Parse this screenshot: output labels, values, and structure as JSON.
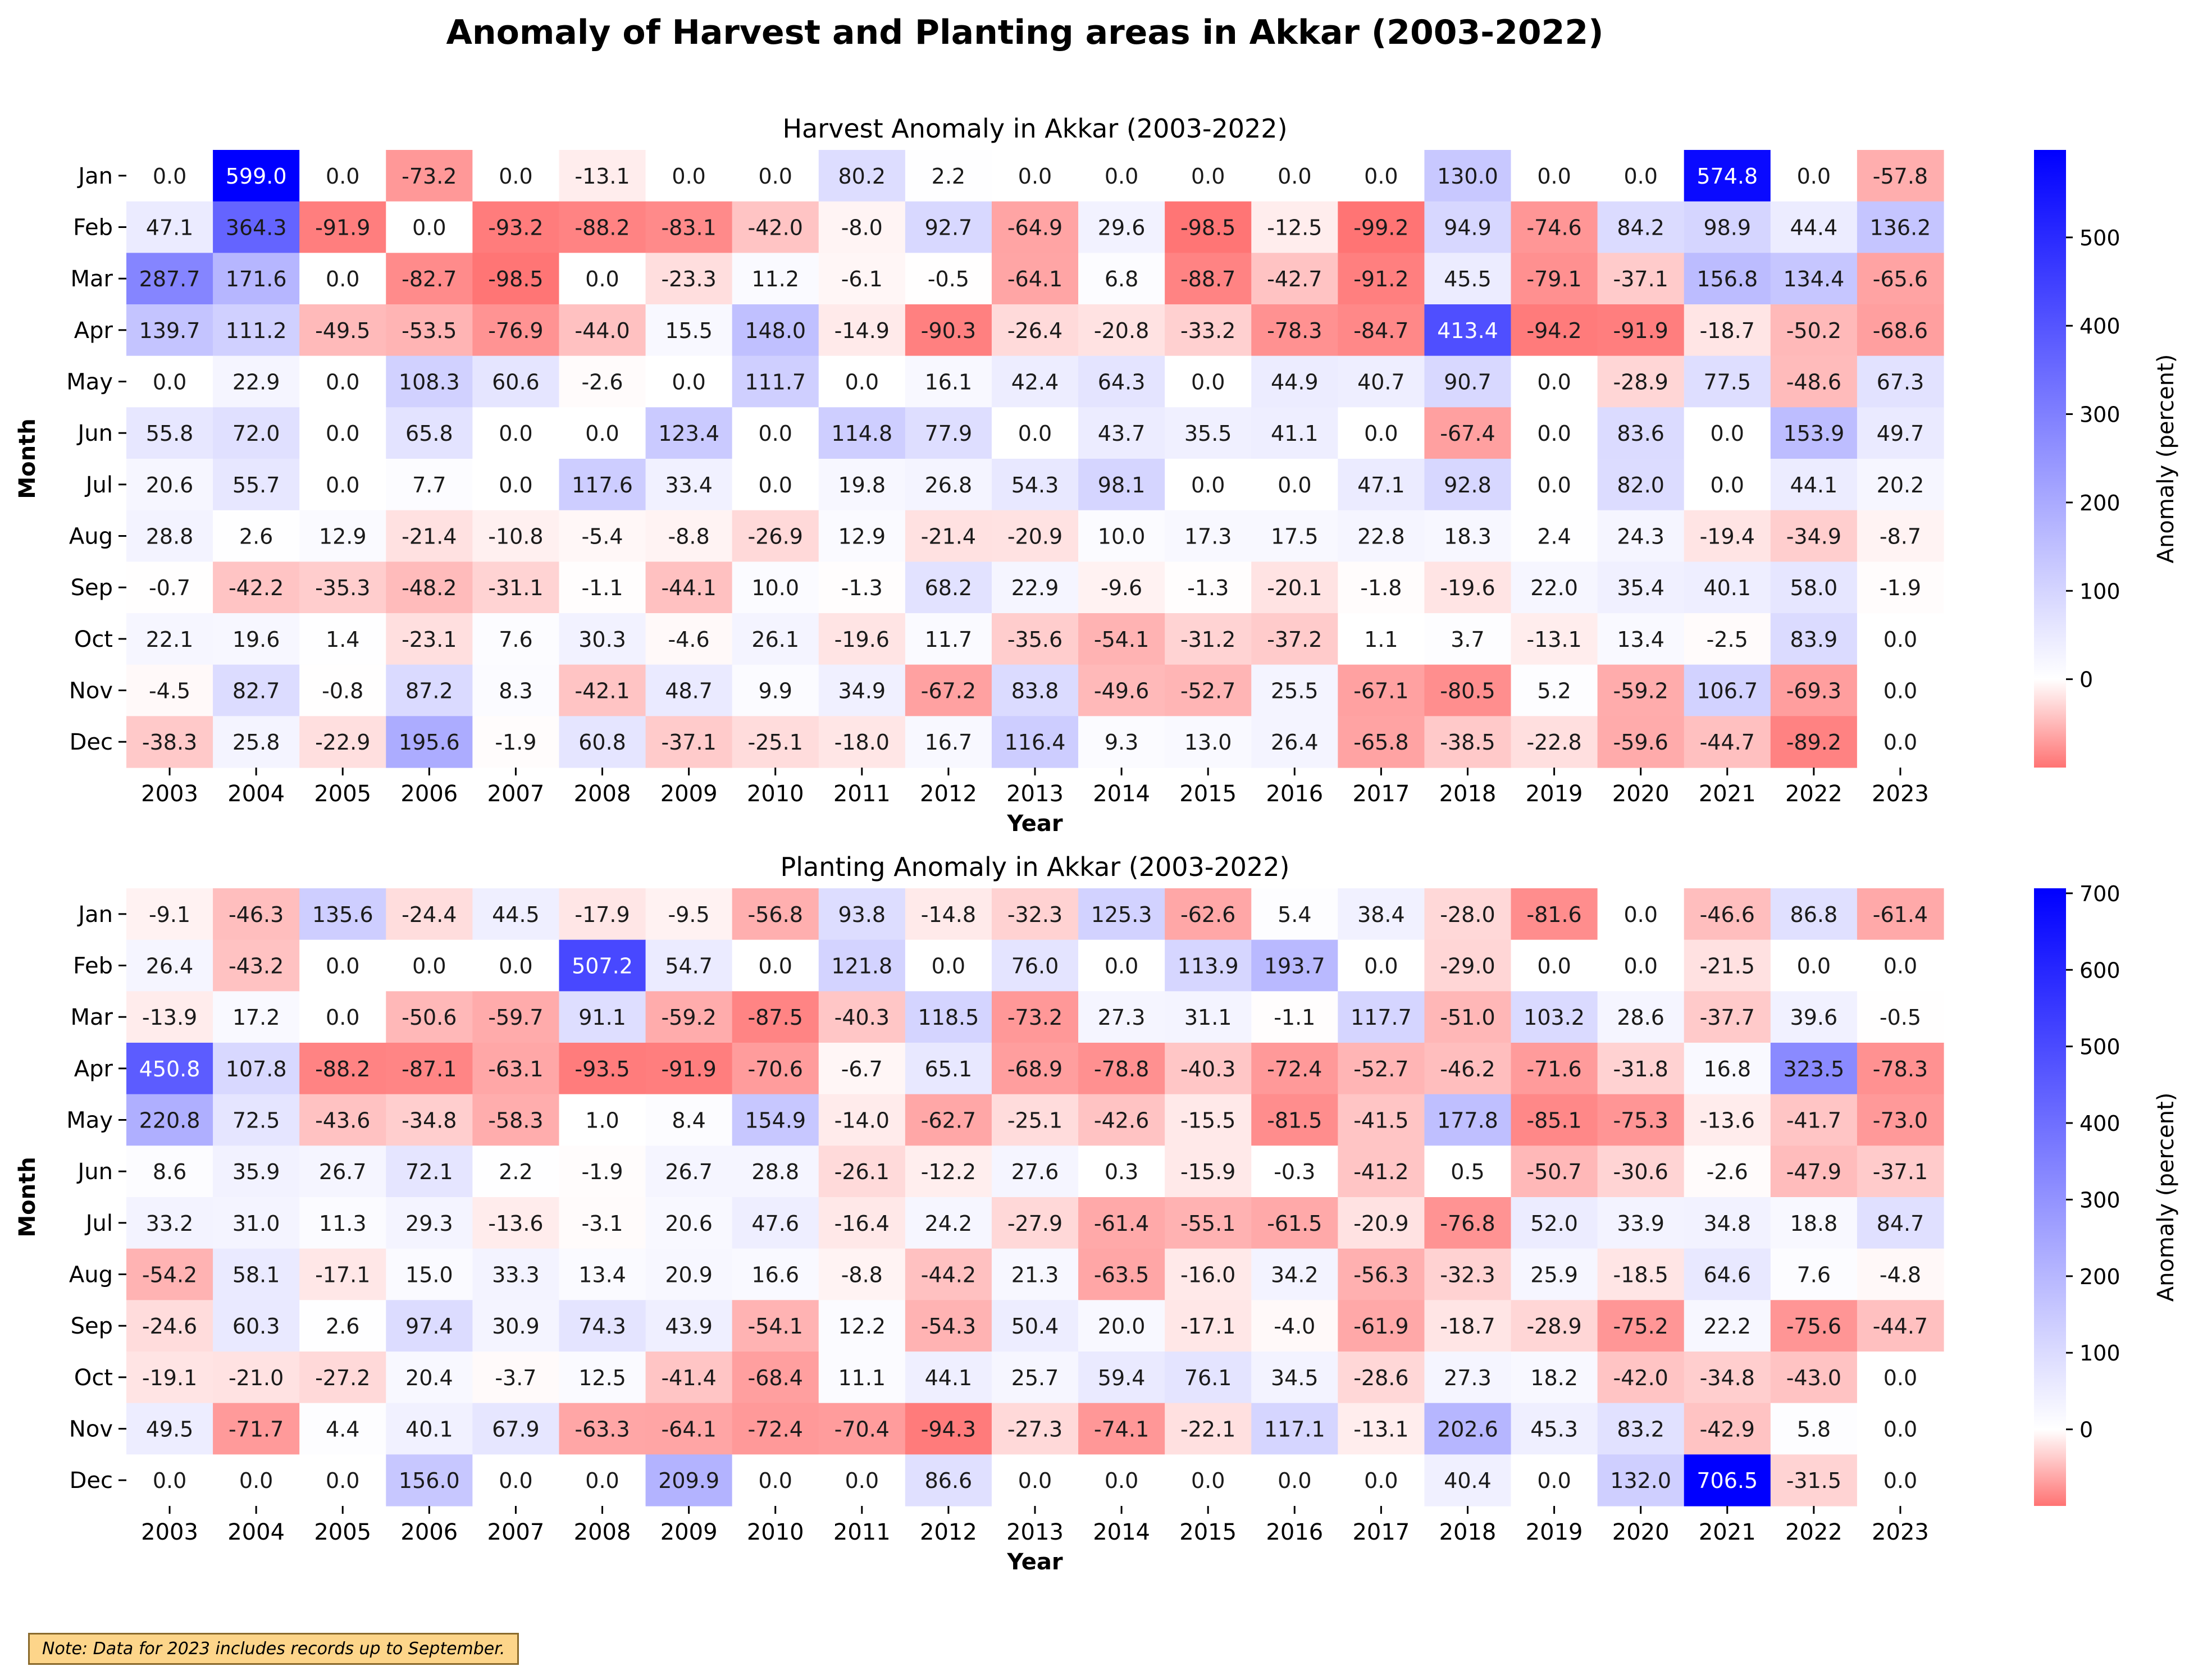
{
  "figure": {
    "title": "Anomaly of Harvest and Planting areas in Akkar (2003-2022)",
    "note": "Note: Data for 2023 includes records up to September."
  },
  "chart_data": [
    {
      "type": "heatmap",
      "title": "Harvest Anomaly in Akkar (2003-2022)",
      "xlabel": "Year",
      "ylabel": "Month",
      "colorbar_label": "Anomaly (percent)",
      "colorbar_range": [
        -100,
        599.0
      ],
      "colorbar_ticks": [
        0,
        100,
        200,
        300,
        400,
        500
      ],
      "colormap": {
        "negative": "#ff0000",
        "zero": "#ffffff",
        "positive": "#0000ff"
      },
      "x": [
        "2003",
        "2004",
        "2005",
        "2006",
        "2007",
        "2008",
        "2009",
        "2010",
        "2011",
        "2012",
        "2013",
        "2014",
        "2015",
        "2016",
        "2017",
        "2018",
        "2019",
        "2020",
        "2021",
        "2022",
        "2023"
      ],
      "y": [
        "Jan",
        "Feb",
        "Mar",
        "Apr",
        "May",
        "Jun",
        "Jul",
        "Aug",
        "Sep",
        "Oct",
        "Nov",
        "Dec"
      ],
      "values": [
        [
          0.0,
          599.0,
          0.0,
          -73.2,
          0.0,
          -13.1,
          0.0,
          0.0,
          80.2,
          2.2,
          0.0,
          0.0,
          0.0,
          0.0,
          0.0,
          130.0,
          0.0,
          0.0,
          574.8,
          0.0,
          -57.8
        ],
        [
          47.1,
          364.3,
          -91.9,
          0.0,
          -93.2,
          -88.2,
          -83.1,
          -42.0,
          -8.0,
          92.7,
          -64.9,
          29.6,
          -98.5,
          -12.5,
          -99.2,
          94.9,
          -74.6,
          84.2,
          98.9,
          44.4,
          136.2
        ],
        [
          287.7,
          171.6,
          0.0,
          -82.7,
          -98.5,
          0.0,
          -23.3,
          11.2,
          -6.1,
          -0.5,
          -64.1,
          6.8,
          -88.7,
          -42.7,
          -91.2,
          45.5,
          -79.1,
          -37.1,
          156.8,
          134.4,
          -65.6
        ],
        [
          139.7,
          111.2,
          -49.5,
          -53.5,
          -76.9,
          -44.0,
          15.5,
          148.0,
          -14.9,
          -90.3,
          -26.4,
          -20.8,
          -33.2,
          -78.3,
          -84.7,
          413.4,
          -94.2,
          -91.9,
          -18.7,
          -50.2,
          -68.6
        ],
        [
          0.0,
          22.9,
          0.0,
          108.3,
          60.6,
          -2.6,
          0.0,
          111.7,
          0.0,
          16.1,
          42.4,
          64.3,
          0.0,
          44.9,
          40.7,
          90.7,
          0.0,
          -28.9,
          77.5,
          -48.6,
          67.3
        ],
        [
          55.8,
          72.0,
          0.0,
          65.8,
          0.0,
          0.0,
          123.4,
          0.0,
          114.8,
          77.9,
          0.0,
          43.7,
          35.5,
          41.1,
          0.0,
          -67.4,
          0.0,
          83.6,
          0.0,
          153.9,
          49.7
        ],
        [
          20.6,
          55.7,
          0.0,
          7.7,
          0.0,
          117.6,
          33.4,
          0.0,
          19.8,
          26.8,
          54.3,
          98.1,
          0.0,
          0.0,
          47.1,
          92.8,
          0.0,
          82.0,
          0.0,
          44.1,
          20.2
        ],
        [
          28.8,
          2.6,
          12.9,
          -21.4,
          -10.8,
          -5.4,
          -8.8,
          -26.9,
          12.9,
          -21.4,
          -20.9,
          10.0,
          17.3,
          17.5,
          22.8,
          18.3,
          2.4,
          24.3,
          -19.4,
          -34.9,
          -8.7
        ],
        [
          -0.7,
          -42.2,
          -35.3,
          -48.2,
          -31.1,
          -1.1,
          -44.1,
          10.0,
          -1.3,
          68.2,
          22.9,
          -9.6,
          -1.3,
          -20.1,
          -1.8,
          -19.6,
          22.0,
          35.4,
          40.1,
          58.0,
          -1.9
        ],
        [
          22.1,
          19.6,
          1.4,
          -23.1,
          7.6,
          30.3,
          -4.6,
          26.1,
          -19.6,
          11.7,
          -35.6,
          -54.1,
          -31.2,
          -37.2,
          1.1,
          3.7,
          -13.1,
          13.4,
          -2.5,
          83.9,
          0.0
        ],
        [
          -4.5,
          82.7,
          -0.8,
          87.2,
          8.3,
          -42.1,
          48.7,
          9.9,
          34.9,
          -67.2,
          83.8,
          -49.6,
          -52.7,
          25.5,
          -67.1,
          -80.5,
          5.2,
          -59.2,
          106.7,
          -69.3,
          0.0
        ],
        [
          -38.3,
          25.8,
          -22.9,
          195.6,
          -1.9,
          60.8,
          -37.1,
          -25.1,
          -18.0,
          16.7,
          116.4,
          9.3,
          13.0,
          26.4,
          -65.8,
          -38.5,
          -22.8,
          -59.6,
          -44.7,
          -89.2,
          0.0
        ]
      ]
    },
    {
      "type": "heatmap",
      "title": "Planting Anomaly in Akkar (2003-2022)",
      "xlabel": "Year",
      "ylabel": "Month",
      "colorbar_label": "Anomaly (percent)",
      "colorbar_range": [
        -100,
        706.5
      ],
      "colorbar_ticks": [
        0,
        100,
        200,
        300,
        400,
        500,
        600,
        700
      ],
      "colormap": {
        "negative": "#ff0000",
        "zero": "#ffffff",
        "positive": "#0000ff"
      },
      "x": [
        "2003",
        "2004",
        "2005",
        "2006",
        "2007",
        "2008",
        "2009",
        "2010",
        "2011",
        "2012",
        "2013",
        "2014",
        "2015",
        "2016",
        "2017",
        "2018",
        "2019",
        "2020",
        "2021",
        "2022",
        "2023"
      ],
      "y": [
        "Jan",
        "Feb",
        "Mar",
        "Apr",
        "May",
        "Jun",
        "Jul",
        "Aug",
        "Sep",
        "Oct",
        "Nov",
        "Dec"
      ],
      "values": [
        [
          -9.1,
          -46.3,
          135.6,
          -24.4,
          44.5,
          -17.9,
          -9.5,
          -56.8,
          93.8,
          -14.8,
          -32.3,
          125.3,
          -62.6,
          5.4,
          38.4,
          -28.0,
          -81.6,
          0.0,
          -46.6,
          86.8,
          -61.4
        ],
        [
          26.4,
          -43.2,
          0.0,
          0.0,
          0.0,
          507.2,
          54.7,
          0.0,
          121.8,
          0.0,
          76.0,
          0.0,
          113.9,
          193.7,
          0.0,
          -29.0,
          0.0,
          0.0,
          -21.5,
          0.0,
          0.0
        ],
        [
          -13.9,
          17.2,
          0.0,
          -50.6,
          -59.7,
          91.1,
          -59.2,
          -87.5,
          -40.3,
          118.5,
          -73.2,
          27.3,
          31.1,
          -1.1,
          117.7,
          -51.0,
          103.2,
          28.6,
          -37.7,
          39.6,
          -0.5
        ],
        [
          450.8,
          107.8,
          -88.2,
          -87.1,
          -63.1,
          -93.5,
          -91.9,
          -70.6,
          -6.7,
          65.1,
          -68.9,
          -78.8,
          -40.3,
          -72.4,
          -52.7,
          -46.2,
          -71.6,
          -31.8,
          16.8,
          323.5,
          -78.3
        ],
        [
          220.8,
          72.5,
          -43.6,
          -34.8,
          -58.3,
          1.0,
          8.4,
          154.9,
          -14.0,
          -62.7,
          -25.1,
          -42.6,
          -15.5,
          -81.5,
          -41.5,
          177.8,
          -85.1,
          -75.3,
          -13.6,
          -41.7,
          -73.0
        ],
        [
          8.6,
          35.9,
          26.7,
          72.1,
          2.2,
          -1.9,
          26.7,
          28.8,
          -26.1,
          -12.2,
          27.6,
          0.3,
          -15.9,
          -0.3,
          -41.2,
          0.5,
          -50.7,
          -30.6,
          -2.6,
          -47.9,
          -37.1
        ],
        [
          33.2,
          31.0,
          11.3,
          29.3,
          -13.6,
          -3.1,
          20.6,
          47.6,
          -16.4,
          24.2,
          -27.9,
          -61.4,
          -55.1,
          -61.5,
          -20.9,
          -76.8,
          52.0,
          33.9,
          34.8,
          18.8,
          84.7
        ],
        [
          -54.2,
          58.1,
          -17.1,
          15.0,
          33.3,
          13.4,
          20.9,
          16.6,
          -8.8,
          -44.2,
          21.3,
          -63.5,
          -16.0,
          34.2,
          -56.3,
          -32.3,
          25.9,
          -18.5,
          64.6,
          7.6,
          -4.8
        ],
        [
          -24.6,
          60.3,
          2.6,
          97.4,
          30.9,
          74.3,
          43.9,
          -54.1,
          12.2,
          -54.3,
          50.4,
          20.0,
          -17.1,
          -4.0,
          -61.9,
          -18.7,
          -28.9,
          -75.2,
          22.2,
          -75.6,
          -44.7
        ],
        [
          -19.1,
          -21.0,
          -27.2,
          20.4,
          -3.7,
          12.5,
          -41.4,
          -68.4,
          11.1,
          44.1,
          25.7,
          59.4,
          76.1,
          34.5,
          -28.6,
          27.3,
          18.2,
          -42.0,
          -34.8,
          -43.0,
          0.0
        ],
        [
          49.5,
          -71.7,
          4.4,
          40.1,
          67.9,
          -63.3,
          -64.1,
          -72.4,
          -70.4,
          -94.3,
          -27.3,
          -74.1,
          -22.1,
          117.1,
          -13.1,
          202.6,
          45.3,
          83.2,
          -42.9,
          5.8,
          0.0
        ],
        [
          0.0,
          0.0,
          0.0,
          156.0,
          0.0,
          0.0,
          209.9,
          0.0,
          0.0,
          86.6,
          0.0,
          0.0,
          0.0,
          0.0,
          0.0,
          40.4,
          0.0,
          132.0,
          706.5,
          -31.5,
          0.0
        ]
      ]
    }
  ]
}
